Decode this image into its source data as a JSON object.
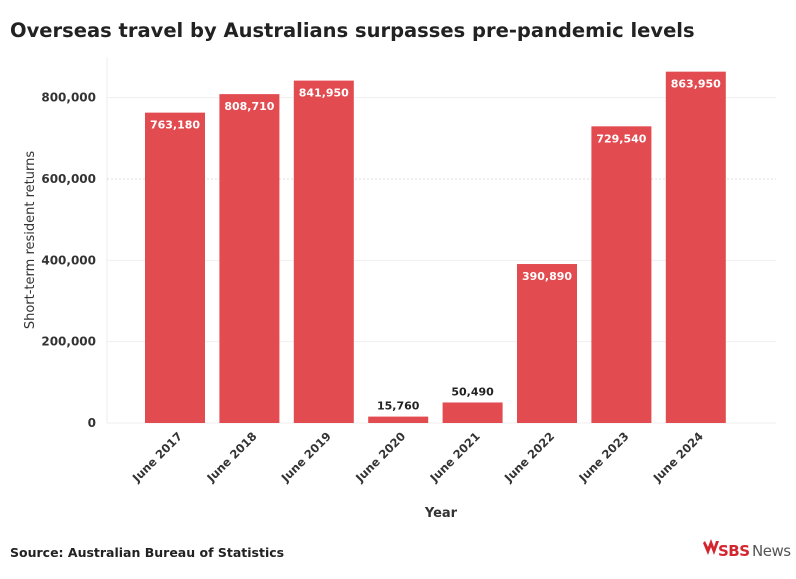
{
  "chart_data": {
    "type": "bar",
    "title": "Overseas travel by Australians surpasses pre-pandemic levels",
    "xlabel": "Year",
    "ylabel": "Short-term resident returns",
    "categories": [
      "June 2017",
      "June 2018",
      "June 2019",
      "June 2020",
      "June 2021",
      "June 2022",
      "June 2023",
      "June 2024"
    ],
    "values": [
      763180,
      808710,
      841950,
      15760,
      50490,
      390890,
      729540,
      863950
    ],
    "data_labels": [
      "763,180",
      "808,710",
      "841,950",
      "15,760",
      "50,490",
      "390,890",
      "729,540",
      "863,950"
    ],
    "yticks": [
      0,
      200000,
      400000,
      600000,
      800000
    ],
    "ytick_labels": [
      "0",
      "200,000",
      "400,000",
      "600,000",
      "800,000"
    ],
    "ylim": [
      0,
      900000
    ],
    "grid": true,
    "bar_color": "#e24b50"
  },
  "source": "Source: Australian Bureau of Statistics",
  "logo": {
    "text_brand": "SBS",
    "text_news": "News"
  }
}
